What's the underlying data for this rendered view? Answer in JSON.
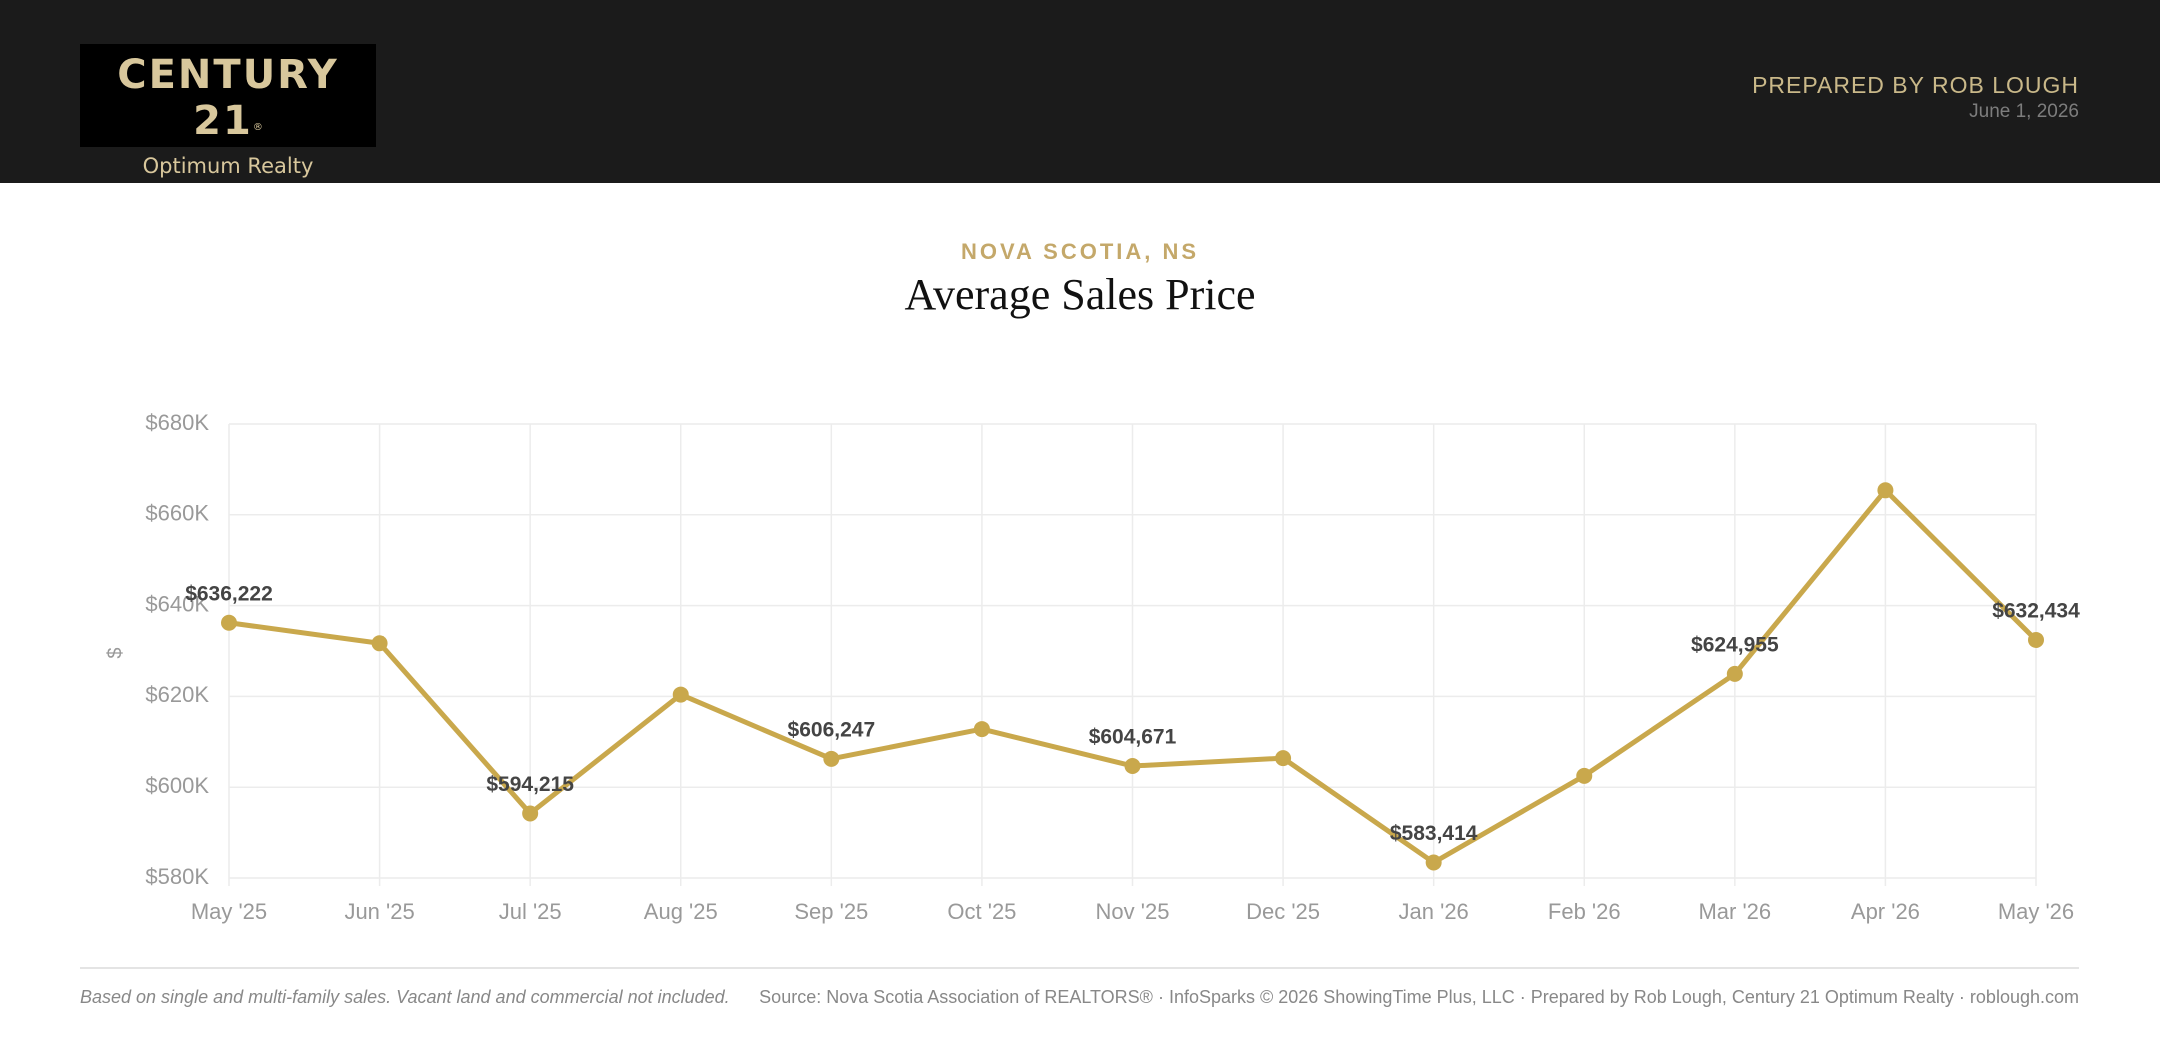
{
  "header": {
    "logo_title": "CENTURY 21",
    "logo_mark": "®",
    "logo_subtitle": "Optimum Realty",
    "prepared_by": "PREPARED BY ROB LOUGH",
    "date": "June 1, 2026"
  },
  "chart_data": {
    "type": "line",
    "subtitle": "NOVA SCOTIA, NS",
    "title": "Average Sales Price",
    "y_label": "$",
    "color": "#c9a84c",
    "grid": true,
    "categories": [
      "May '25",
      "Jun '25",
      "Jul '25",
      "Aug '25",
      "Sep '25",
      "Oct '25",
      "Nov '25",
      "Dec '25",
      "Jan '26",
      "Feb '26",
      "Mar '26",
      "Apr '26",
      "May '26"
    ],
    "values": [
      636222,
      631700,
      594215,
      620400,
      606247,
      612800,
      604671,
      606400,
      583414,
      602500,
      624955,
      665400,
      632434
    ],
    "value_labels": [
      "$636,222",
      null,
      "$594,215",
      null,
      "$606,247",
      null,
      "$604,671",
      null,
      "$583,414",
      null,
      "$624,955",
      null,
      "$632,434"
    ],
    "ylim": [
      580000,
      680000
    ],
    "yticks": [
      {
        "value": 580000,
        "label": "$580K"
      },
      {
        "value": 600000,
        "label": "$600K"
      },
      {
        "value": 620000,
        "label": "$620K"
      },
      {
        "value": 640000,
        "label": "$640K"
      },
      {
        "value": 660000,
        "label": "$660K"
      },
      {
        "value": 680000,
        "label": "$680K"
      }
    ]
  },
  "footer": {
    "note": "Based on single and multi-family sales. Vacant land and commercial not included.",
    "source": "Source: Nova Scotia Association of REALTORS® · InfoSparks © 2026 ShowingTime Plus, LLC · Prepared by Rob Lough, Century 21 Optimum Realty · roblough.com"
  }
}
